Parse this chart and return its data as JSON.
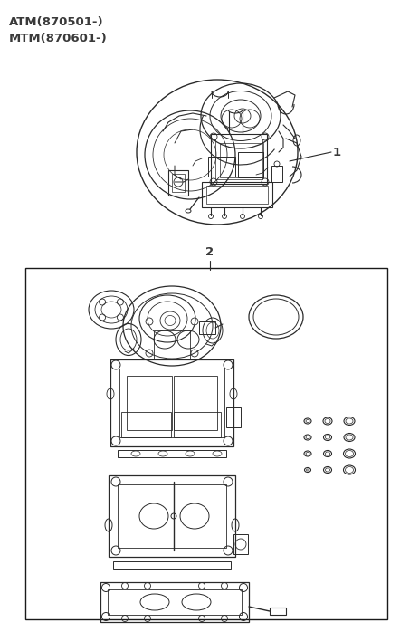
{
  "background_color": "#ffffff",
  "fig_width": 4.64,
  "fig_height": 6.98,
  "dpi": 100,
  "text_atm": "ATM(870501-)",
  "text_mtm": "MTM(870601-)",
  "label1": "1",
  "label2": "2",
  "text_color": "#3a3a3a",
  "line_color": "#2a2a2a",
  "label_fontsize": 8.5,
  "header_fontsize": 9.5,
  "box_color": "#1a1a1a"
}
